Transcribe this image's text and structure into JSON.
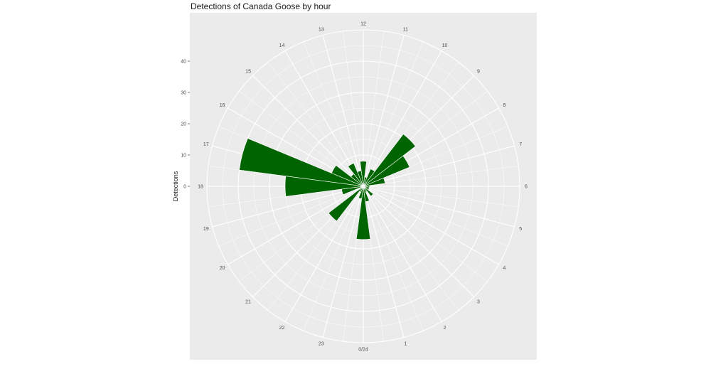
{
  "chart_data": {
    "type": "bar",
    "coord": "polar",
    "title": "Detections of Canada Goose by hour",
    "xlabel": "",
    "ylabel": "Detections",
    "ylim": [
      0,
      50
    ],
    "yticks": [
      0,
      10,
      20,
      30,
      40
    ],
    "categories": [
      0,
      1,
      2,
      3,
      4,
      5,
      6,
      7,
      8,
      9,
      10,
      11,
      12,
      13,
      14,
      15,
      16,
      17,
      18,
      19,
      20,
      21,
      22,
      23
    ],
    "hour_labels": [
      "0/24",
      "1",
      "2",
      "3",
      "4",
      "5",
      "6",
      "7",
      "8",
      "9",
      "10",
      "11",
      "12",
      "13",
      "14",
      "15",
      "16",
      "17",
      "18",
      "19",
      "20",
      "21",
      "22",
      "23"
    ],
    "values": [
      17,
      5,
      2,
      4,
      2,
      2,
      2,
      7,
      16,
      21,
      6,
      3,
      8,
      5,
      8,
      5,
      11,
      40,
      25,
      7,
      1,
      14,
      2,
      4
    ],
    "bar_color": "#006400",
    "panel_background": "#ebebeb",
    "grid_color": "#ffffff"
  }
}
